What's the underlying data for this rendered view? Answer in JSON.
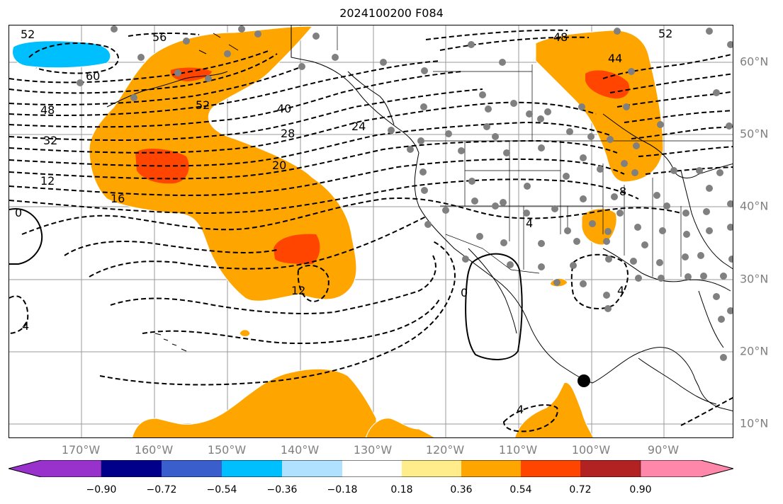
{
  "title": "2024100200 F084",
  "map": {
    "longitude_labels": [
      "170°W",
      "160°W",
      "150°W",
      "140°W",
      "130°W",
      "120°W",
      "110°W",
      "100°W",
      "90°W"
    ],
    "latitude_labels": [
      "60°N",
      "50°N",
      "40°N",
      "30°N",
      "20°N",
      "10°N"
    ],
    "contour_labels": [
      {
        "text": "52"
      },
      {
        "text": "56"
      },
      {
        "text": "60"
      },
      {
        "text": "48"
      },
      {
        "text": "32"
      },
      {
        "text": "12"
      },
      {
        "text": "16"
      },
      {
        "text": "52"
      },
      {
        "text": "40"
      },
      {
        "text": "28"
      },
      {
        "text": "24"
      },
      {
        "text": "20"
      },
      {
        "text": "12"
      },
      {
        "text": "4"
      },
      {
        "text": "0"
      },
      {
        "text": "48"
      },
      {
        "text": "52"
      },
      {
        "text": "44"
      },
      {
        "text": "8"
      },
      {
        "text": "4"
      },
      {
        "text": "4"
      },
      {
        "text": "0"
      },
      {
        "text": "4"
      }
    ],
    "fill_colors": {
      "orange": "#ffa500",
      "red_orange": "#ff4500",
      "deep_sky_blue": "#00bfff",
      "station_dot": "#808080"
    }
  },
  "colorbar": {
    "ticks": [
      "−0.90",
      "−0.72",
      "−0.54",
      "−0.36",
      "−0.18",
      "0.18",
      "0.36",
      "0.54",
      "0.72",
      "0.90"
    ],
    "colors": [
      "#9932cc",
      "#00008b",
      "#3a5fcd",
      "#00bfff",
      "#b0e2ff",
      "#ffffff",
      "#ffec8b",
      "#ffa500",
      "#ff4500",
      "#b22222",
      "#ff88aa"
    ]
  }
}
